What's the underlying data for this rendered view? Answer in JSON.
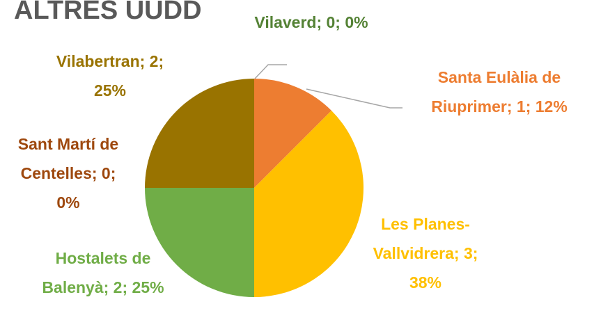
{
  "chart_data": {
    "type": "pie",
    "title": "ALTRES UUDD",
    "categories": [
      "Vilaverd",
      "Santa Eulàlia de Riuprimer",
      "Les Planes-Vallvidrera",
      "Hostalets de Balenyà",
      "Sant Martí de Centelles",
      "Vilabertran"
    ],
    "values": [
      0,
      1,
      3,
      2,
      0,
      2
    ],
    "value_labels": [
      "Vilaverd; 0; 0%",
      "Santa Eulàlia de Riuprimer; 1; 12%",
      "Les Planes-Vallvidrera; 3; 38%",
      "Hostalets de Balenyà; 2; 25%",
      "Sant Martí de Centelles; 0; 0%",
      "Vilabertran; 2; 25%"
    ],
    "colors": [
      "#548235",
      "#ED7D31",
      "#FFC000",
      "#70AD47",
      "#9E480E",
      "#997300"
    ]
  }
}
